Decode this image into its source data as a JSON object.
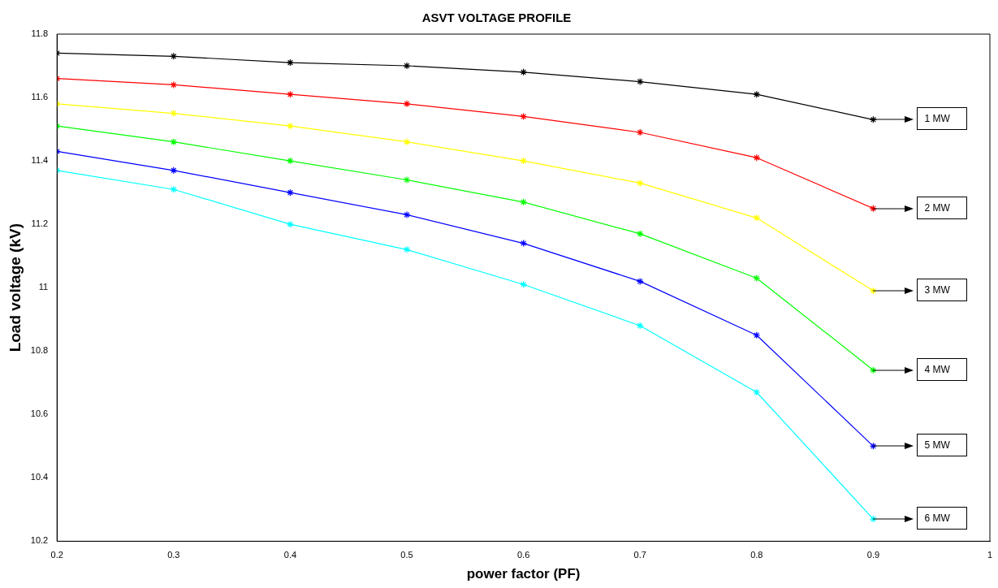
{
  "chart_data": {
    "type": "line",
    "title": "ASVT VOLTAGE PROFILE",
    "xlabel": "power factor (PF)",
    "ylabel": "Load voltage (kV)",
    "x": [
      0.2,
      0.3,
      0.4,
      0.5,
      0.6,
      0.7,
      0.8,
      0.9
    ],
    "series": [
      {
        "color": "#000000",
        "values": [
          11.74,
          11.73,
          11.71,
          11.7,
          11.68,
          11.65,
          11.61,
          11.53
        ]
      },
      {
        "color": "#ff0000",
        "values": [
          11.66,
          11.64,
          11.61,
          11.58,
          11.54,
          11.49,
          11.41,
          11.25
        ]
      },
      {
        "color": "#ffff00",
        "values": [
          11.58,
          11.55,
          11.51,
          11.46,
          11.4,
          11.33,
          11.22,
          10.99
        ]
      },
      {
        "color": "#00ff00",
        "values": [
          11.51,
          11.46,
          11.4,
          11.34,
          11.27,
          11.17,
          11.03,
          10.74
        ]
      },
      {
        "color": "#0000ff",
        "values": [
          11.43,
          11.37,
          11.3,
          11.23,
          11.14,
          11.02,
          10.85,
          10.5
        ]
      },
      {
        "color": "#00ffff",
        "values": [
          11.37,
          11.31,
          11.2,
          11.12,
          11.01,
          10.88,
          10.67,
          10.27
        ]
      }
    ],
    "annotations": [
      "1 MW",
      "2 MW",
      "3 MW",
      "4 MW",
      "5 MW",
      "6 MW"
    ],
    "xlim": [
      0.2,
      1
    ],
    "xticks": [
      0.2,
      0.3,
      0.4,
      0.5,
      0.6,
      0.7,
      0.8,
      0.9,
      1
    ],
    "ylim": [
      10.2,
      11.8
    ],
    "yticks": [
      10.2,
      10.4,
      10.6,
      10.8,
      11,
      11.2,
      11.4,
      11.6,
      11.8
    ],
    "grid": false,
    "legend": false,
    "marker": "cross",
    "line_style": "solid"
  }
}
